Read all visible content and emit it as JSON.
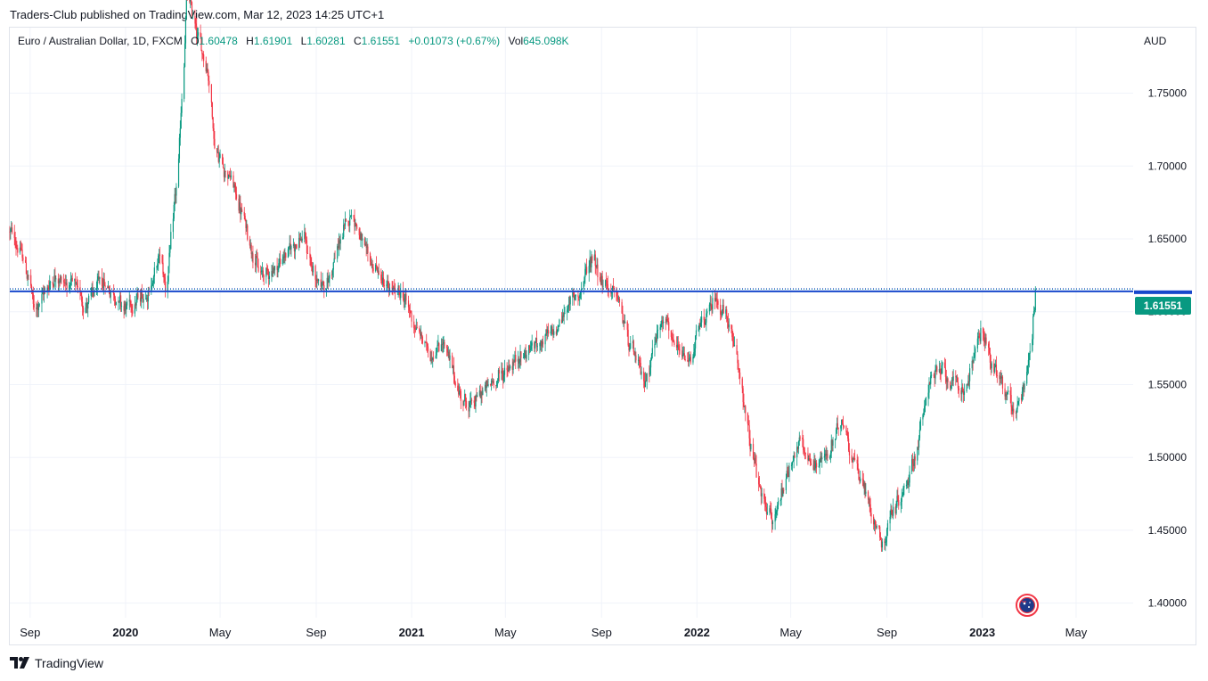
{
  "header": {
    "published_text": "Traders-Club published on TradingView.com, Mar 12, 2023 14:25 UTC+1"
  },
  "legend": {
    "symbol_text": "Euro / Australian Dollar, 1D, FXCM",
    "open_label": "O",
    "open_value": "1.60478",
    "high_label": "H",
    "high_value": "1.61901",
    "low_label": "L",
    "low_value": "1.60281",
    "close_label": "C",
    "close_value": "1.61551",
    "change_value": "+0.01073 (+0.67%)",
    "vol_label": "Vol",
    "vol_value": "645.098K"
  },
  "currency": "AUD",
  "last_price_label": "1.61551",
  "footer": {
    "brand": "TradingView"
  },
  "colors": {
    "up": "#089981",
    "down": "#f23645",
    "horizontal_line": "#1848cc",
    "grid": "#f0f3fa"
  },
  "chart_data": {
    "type": "candlestick",
    "title": "Euro / Australian Dollar, 1D, FXCM",
    "xlabel": "",
    "ylabel": "",
    "y_ticks": [
      1.4,
      1.45,
      1.5,
      1.55,
      1.6,
      1.65,
      1.7,
      1.75
    ],
    "y_tick_labels": [
      "1.40000",
      "1.45000",
      "1.50000",
      "1.55000",
      "1.60000",
      "1.65000",
      "1.70000",
      "1.75000"
    ],
    "ylim": [
      1.39,
      1.795
    ],
    "x_tick_labels": [
      "Sep",
      "2020",
      "May",
      "Sep",
      "2021",
      "May",
      "Sep",
      "2022",
      "May",
      "Sep",
      "2023",
      "May"
    ],
    "x_tick_dates": [
      "2019-09-01",
      "2020-01-01",
      "2020-05-01",
      "2020-09-01",
      "2021-01-01",
      "2021-05-01",
      "2021-09-01",
      "2022-01-01",
      "2022-05-01",
      "2022-09-01",
      "2023-01-01",
      "2023-05-01"
    ],
    "bold_ticks": [
      "2020",
      "2021",
      "2022",
      "2023"
    ],
    "xlim": [
      "2019-08-06",
      "2023-07-13"
    ],
    "horizontal_line": 1.614,
    "last_close": 1.61551,
    "price_path": [
      {
        "date": "2019-08-06",
        "price": 1.655
      },
      {
        "date": "2019-08-20",
        "price": 1.64
      },
      {
        "date": "2019-09-01",
        "price": 1.618
      },
      {
        "date": "2019-09-05",
        "price": 1.6
      },
      {
        "date": "2019-10-01",
        "price": 1.625
      },
      {
        "date": "2019-11-01",
        "price": 1.615
      },
      {
        "date": "2019-11-10",
        "price": 1.603
      },
      {
        "date": "2019-12-01",
        "price": 1.622
      },
      {
        "date": "2019-12-31",
        "price": 1.602
      },
      {
        "date": "2020-01-31",
        "price": 1.615
      },
      {
        "date": "2020-02-14",
        "price": 1.64
      },
      {
        "date": "2020-02-21",
        "price": 1.615
      },
      {
        "date": "2020-03-08",
        "price": 1.7
      },
      {
        "date": "2020-03-19",
        "price": 1.82
      },
      {
        "date": "2020-04-01",
        "price": 1.79
      },
      {
        "date": "2020-04-15",
        "price": 1.765
      },
      {
        "date": "2020-04-24",
        "price": 1.71
      },
      {
        "date": "2020-05-15",
        "price": 1.69
      },
      {
        "date": "2020-06-01",
        "price": 1.66
      },
      {
        "date": "2020-06-20",
        "price": 1.625
      },
      {
        "date": "2020-07-10",
        "price": 1.63
      },
      {
        "date": "2020-07-31",
        "price": 1.645
      },
      {
        "date": "2020-08-15",
        "price": 1.652
      },
      {
        "date": "2020-08-31",
        "price": 1.62
      },
      {
        "date": "2020-09-15",
        "price": 1.62
      },
      {
        "date": "2020-10-01",
        "price": 1.65
      },
      {
        "date": "2020-10-16",
        "price": 1.67
      },
      {
        "date": "2020-11-01",
        "price": 1.64
      },
      {
        "date": "2020-11-15",
        "price": 1.63
      },
      {
        "date": "2020-12-01",
        "price": 1.615
      },
      {
        "date": "2020-12-20",
        "price": 1.612
      },
      {
        "date": "2021-01-05",
        "price": 1.59
      },
      {
        "date": "2021-01-25",
        "price": 1.57
      },
      {
        "date": "2021-02-10",
        "price": 1.58
      },
      {
        "date": "2021-03-01",
        "price": 1.545
      },
      {
        "date": "2021-03-15",
        "price": 1.535
      },
      {
        "date": "2021-04-01",
        "price": 1.545
      },
      {
        "date": "2021-05-01",
        "price": 1.56
      },
      {
        "date": "2021-06-01",
        "price": 1.575
      },
      {
        "date": "2021-07-01",
        "price": 1.585
      },
      {
        "date": "2021-07-20",
        "price": 1.605
      },
      {
        "date": "2021-08-05",
        "price": 1.615
      },
      {
        "date": "2021-08-20",
        "price": 1.64
      },
      {
        "date": "2021-09-01",
        "price": 1.62
      },
      {
        "date": "2021-09-20",
        "price": 1.61
      },
      {
        "date": "2021-10-05",
        "price": 1.58
      },
      {
        "date": "2021-10-25",
        "price": 1.55
      },
      {
        "date": "2021-11-05",
        "price": 1.575
      },
      {
        "date": "2021-11-20",
        "price": 1.6
      },
      {
        "date": "2021-12-01",
        "price": 1.575
      },
      {
        "date": "2021-12-20",
        "price": 1.565
      },
      {
        "date": "2022-01-05",
        "price": 1.59
      },
      {
        "date": "2022-01-25",
        "price": 1.61
      },
      {
        "date": "2022-02-10",
        "price": 1.59
      },
      {
        "date": "2022-02-25",
        "price": 1.555
      },
      {
        "date": "2022-03-10",
        "price": 1.505
      },
      {
        "date": "2022-03-25",
        "price": 1.47
      },
      {
        "date": "2022-04-08",
        "price": 1.455
      },
      {
        "date": "2022-04-25",
        "price": 1.49
      },
      {
        "date": "2022-05-10",
        "price": 1.51
      },
      {
        "date": "2022-05-25",
        "price": 1.495
      },
      {
        "date": "2022-06-15",
        "price": 1.5
      },
      {
        "date": "2022-07-05",
        "price": 1.525
      },
      {
        "date": "2022-07-25",
        "price": 1.49
      },
      {
        "date": "2022-08-10",
        "price": 1.465
      },
      {
        "date": "2022-08-26",
        "price": 1.44
      },
      {
        "date": "2022-09-05",
        "price": 1.46
      },
      {
        "date": "2022-09-25",
        "price": 1.48
      },
      {
        "date": "2022-10-10",
        "price": 1.51
      },
      {
        "date": "2022-10-25",
        "price": 1.555
      },
      {
        "date": "2022-11-10",
        "price": 1.56
      },
      {
        "date": "2022-11-25",
        "price": 1.55
      },
      {
        "date": "2022-12-10",
        "price": 1.545
      },
      {
        "date": "2022-12-20",
        "price": 1.57
      },
      {
        "date": "2022-12-30",
        "price": 1.59
      },
      {
        "date": "2023-01-15",
        "price": 1.56
      },
      {
        "date": "2023-01-31",
        "price": 1.545
      },
      {
        "date": "2023-02-10",
        "price": 1.53
      },
      {
        "date": "2023-02-25",
        "price": 1.555
      },
      {
        "date": "2023-03-05",
        "price": 1.585
      },
      {
        "date": "2023-03-10",
        "price": 1.61551
      }
    ]
  }
}
